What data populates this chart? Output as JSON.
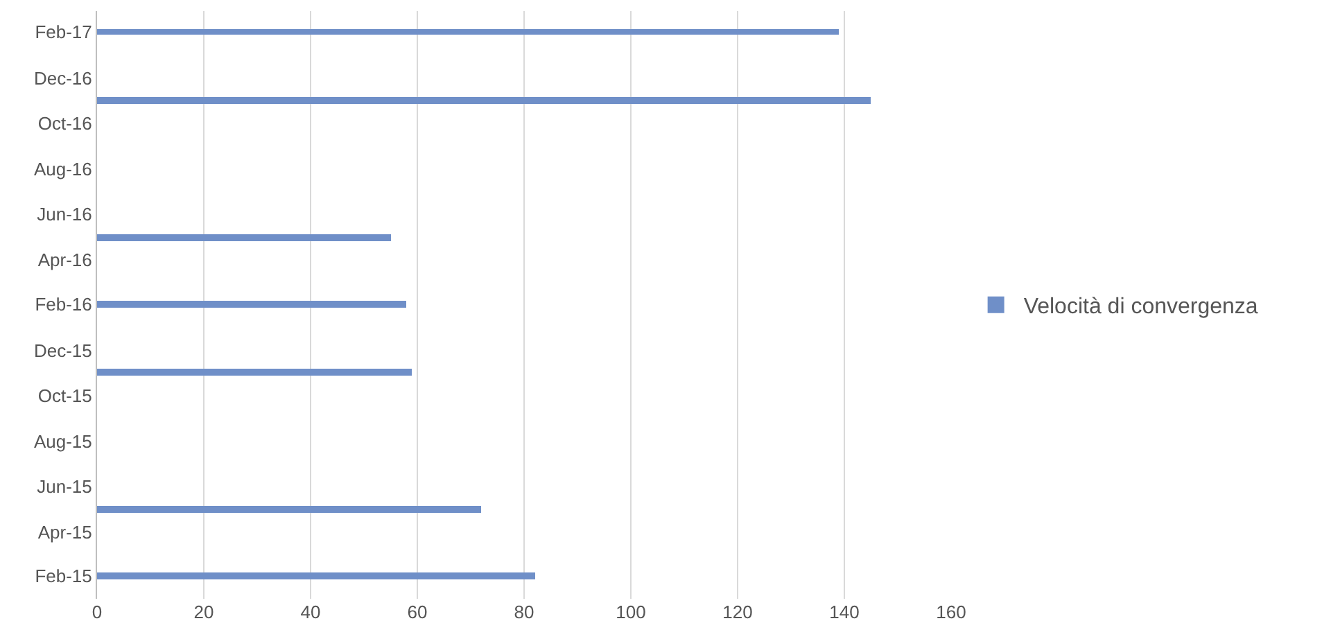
{
  "chart_data": {
    "type": "bar",
    "orientation": "horizontal",
    "x": [
      "2015-02",
      "2015-05",
      "2015-11",
      "2016-02",
      "2016-05",
      "2016-11",
      "2017-02"
    ],
    "series": [
      {
        "name": "Velocità di convergenza",
        "color": "#6f8fc8",
        "values": [
          82,
          72,
          59,
          58,
          55,
          145,
          139
        ]
      }
    ],
    "xlim": [
      0,
      160
    ],
    "xticks": [
      0,
      20,
      40,
      60,
      80,
      100,
      120,
      140,
      160
    ],
    "ylim": [
      "2015-01",
      "2017-03"
    ],
    "yticks": [
      {
        "value": "2015-02",
        "label": "Feb-15"
      },
      {
        "value": "2015-04",
        "label": "Apr-15"
      },
      {
        "value": "2015-06",
        "label": "Jun-15"
      },
      {
        "value": "2015-08",
        "label": "Aug-15"
      },
      {
        "value": "2015-10",
        "label": "Oct-15"
      },
      {
        "value": "2015-12",
        "label": "Dec-15"
      },
      {
        "value": "2016-02",
        "label": "Feb-16"
      },
      {
        "value": "2016-04",
        "label": "Apr-16"
      },
      {
        "value": "2016-06",
        "label": "Jun-16"
      },
      {
        "value": "2016-08",
        "label": "Aug-16"
      },
      {
        "value": "2016-10",
        "label": "Oct-16"
      },
      {
        "value": "2016-12",
        "label": "Dec-16"
      },
      {
        "value": "2017-02",
        "label": "Feb-17"
      }
    ],
    "grid": "x",
    "legend": "right"
  }
}
